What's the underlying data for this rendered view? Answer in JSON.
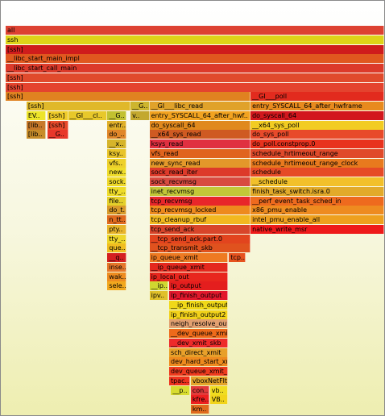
{
  "chart_data": {
    "type": "flame",
    "frames": [
      {
        "label": "all",
        "depth": 0,
        "start": 0,
        "width": 1000,
        "color": "#dd4231"
      },
      {
        "label": "ssh",
        "depth": 1,
        "start": 0,
        "width": 1000,
        "color": "#ded418"
      },
      {
        "label": "[ssh]",
        "depth": 2,
        "start": 0,
        "width": 1000,
        "color": "#cf1c1c"
      },
      {
        "label": "__libc_start_main_impl",
        "depth": 3,
        "start": 0,
        "width": 1000,
        "color": "#e0581f"
      },
      {
        "label": "__libc_start_call_main",
        "depth": 4,
        "start": 0,
        "width": 1000,
        "color": "#dc3a2a"
      },
      {
        "label": "[ssh]",
        "depth": 5,
        "start": 0,
        "width": 1000,
        "color": "#e04a2c"
      },
      {
        "label": "[ssh]",
        "depth": 6,
        "start": 0,
        "width": 1000,
        "color": "#e4432e"
      },
      {
        "label": "[ssh]",
        "depth": 7,
        "start": 0,
        "width": 647,
        "color": "#e08220"
      },
      {
        "label": "__GI___poll",
        "depth": 7,
        "start": 647,
        "width": 353,
        "color": "#e22b1e"
      },
      {
        "label": "[ssh]",
        "depth": 8,
        "start": 55,
        "width": 275,
        "color": "#e0b82a"
      },
      {
        "label": "__G..",
        "depth": 8,
        "start": 330,
        "width": 50,
        "color": "#cdb52e"
      },
      {
        "label": "__GI___libc_read",
        "depth": 8,
        "start": 380,
        "width": 267,
        "color": "#e0a22a"
      },
      {
        "label": "entry_SYSCALL_64_after_hwframe",
        "depth": 8,
        "start": 647,
        "width": 353,
        "color": "#e88a1e"
      },
      {
        "label": "EV..",
        "depth": 9,
        "start": 55,
        "width": 52,
        "color": "#ede42a"
      },
      {
        "label": "[ssh]",
        "depth": 9,
        "start": 110,
        "width": 55,
        "color": "#f0cc2a"
      },
      {
        "label": "__GI___cl..",
        "depth": 9,
        "start": 165,
        "width": 104,
        "color": "#e8c82a"
      },
      {
        "label": "__G..",
        "depth": 9,
        "start": 269,
        "width": 50,
        "color": "#c2c130"
      },
      {
        "label": "v..",
        "depth": 9,
        "start": 330,
        "width": 50,
        "color": "#c3a82e"
      },
      {
        "label": "entry_SYSCALL_64_after_hwf..",
        "depth": 9,
        "start": 380,
        "width": 267,
        "color": "#f2a320"
      },
      {
        "label": "do_syscall_64",
        "depth": 9,
        "start": 647,
        "width": 353,
        "color": "#d2171d"
      },
      {
        "label": "[lib..",
        "depth": 10,
        "start": 55,
        "width": 52,
        "color": "#c8792a"
      },
      {
        "label": "[ssh]",
        "depth": 10,
        "start": 110,
        "width": 55,
        "color": "#e84a2a"
      },
      {
        "label": "entr..",
        "depth": 10,
        "start": 269,
        "width": 50,
        "color": "#e0b02a"
      },
      {
        "label": "do_syscall_64",
        "depth": 10,
        "start": 380,
        "width": 267,
        "color": "#e0891e"
      },
      {
        "label": "__x64_sys_poll",
        "depth": 10,
        "start": 647,
        "width": 353,
        "color": "#f2cc22"
      },
      {
        "label": "[lib..",
        "depth": 11,
        "start": 55,
        "width": 52,
        "color": "#c88d2a"
      },
      {
        "label": "__G..",
        "depth": 11,
        "start": 110,
        "width": 55,
        "color": "#e8372a"
      },
      {
        "label": "do_..",
        "depth": 11,
        "start": 269,
        "width": 50,
        "color": "#e0862a"
      },
      {
        "label": "__x64_sys_read",
        "depth": 11,
        "start": 380,
        "width": 267,
        "color": "#cf5a22"
      },
      {
        "label": "do_sys_poll",
        "depth": 11,
        "start": 647,
        "width": 353,
        "color": "#e84a2a"
      },
      {
        "label": "__x..",
        "depth": 12,
        "start": 269,
        "width": 50,
        "color": "#d6b42a"
      },
      {
        "label": "ksys_read",
        "depth": 12,
        "start": 380,
        "width": 267,
        "color": "#e03040"
      },
      {
        "label": "do_poll.constprop.0",
        "depth": 12,
        "start": 647,
        "width": 353,
        "color": "#e8321e"
      },
      {
        "label": "ksy..",
        "depth": 13,
        "start": 269,
        "width": 50,
        "color": "#e8c42a"
      },
      {
        "label": "vfs_read",
        "depth": 13,
        "start": 380,
        "width": 267,
        "color": "#e0641e"
      },
      {
        "label": "schedule_hrtimeout_range",
        "depth": 13,
        "start": 647,
        "width": 353,
        "color": "#e04a2a"
      },
      {
        "label": "vfs..",
        "depth": 14,
        "start": 269,
        "width": 50,
        "color": "#eed12a"
      },
      {
        "label": "new_sync_read",
        "depth": 14,
        "start": 380,
        "width": 267,
        "color": "#e3982a"
      },
      {
        "label": "schedule_hrtimeout_range_clock",
        "depth": 14,
        "start": 647,
        "width": 353,
        "color": "#e87a1e"
      },
      {
        "label": "new..",
        "depth": 15,
        "start": 269,
        "width": 50,
        "color": "#eedc2a"
      },
      {
        "label": "sock_read_iter",
        "depth": 15,
        "start": 380,
        "width": 267,
        "color": "#dd3a2a"
      },
      {
        "label": "schedule",
        "depth": 15,
        "start": 647,
        "width": 353,
        "color": "#e64a26"
      },
      {
        "label": "sock..",
        "depth": 16,
        "start": 269,
        "width": 50,
        "color": "#eed82a"
      },
      {
        "label": "sock_recvmsg",
        "depth": 16,
        "start": 380,
        "width": 267,
        "color": "#d84a40"
      },
      {
        "label": "__schedule",
        "depth": 16,
        "start": 647,
        "width": 353,
        "color": "#f2c02a"
      },
      {
        "label": "tty_..",
        "depth": 17,
        "start": 269,
        "width": 50,
        "color": "#eedc2a"
      },
      {
        "label": "inet_recvmsg",
        "depth": 17,
        "start": 380,
        "width": 267,
        "color": "#c2c838"
      },
      {
        "label": "finish_task_switch.isra.0",
        "depth": 17,
        "start": 647,
        "width": 353,
        "color": "#e2aa2a"
      },
      {
        "label": "file..",
        "depth": 18,
        "start": 269,
        "width": 50,
        "color": "#e4d02a"
      },
      {
        "label": "tcp_recvmsg",
        "depth": 18,
        "start": 380,
        "width": 267,
        "color": "#e8262a"
      },
      {
        "label": "__perf_event_task_sched_in",
        "depth": 18,
        "start": 647,
        "width": 353,
        "color": "#ee6a1e"
      },
      {
        "label": "do_t..",
        "depth": 19,
        "start": 269,
        "width": 50,
        "color": "#d89a2a"
      },
      {
        "label": "tcp_recvmsg_locked",
        "depth": 19,
        "start": 380,
        "width": 267,
        "color": "#ee8a1e"
      },
      {
        "label": "x86_pmu_enable",
        "depth": 19,
        "start": 647,
        "width": 353,
        "color": "#ee8b20"
      },
      {
        "label": "n_tt..",
        "depth": 20,
        "start": 269,
        "width": 50,
        "color": "#e06a1e"
      },
      {
        "label": "tcp_cleanup_rbuf",
        "depth": 20,
        "start": 380,
        "width": 267,
        "color": "#f2b820"
      },
      {
        "label": "intel_pmu_enable_all",
        "depth": 20,
        "start": 647,
        "width": 353,
        "color": "#eea01e"
      },
      {
        "label": "pty..",
        "depth": 21,
        "start": 269,
        "width": 50,
        "color": "#e8b42a"
      },
      {
        "label": "tcp_send_ack",
        "depth": 21,
        "start": 380,
        "width": 267,
        "color": "#d8452a"
      },
      {
        "label": "native_write_msr",
        "depth": 21,
        "start": 647,
        "width": 353,
        "color": "#ee1a1a"
      },
      {
        "label": "tty_..",
        "depth": 22,
        "start": 269,
        "width": 50,
        "color": "#eed62a"
      },
      {
        "label": "__tcp_send_ack.part.0",
        "depth": 22,
        "start": 380,
        "width": 267,
        "color": "#e2441e"
      },
      {
        "label": "que..",
        "depth": 23,
        "start": 269,
        "width": 50,
        "color": "#f0be20"
      },
      {
        "label": "__tcp_transmit_skb",
        "depth": 23,
        "start": 380,
        "width": 267,
        "color": "#e0521e"
      },
      {
        "label": "__q..",
        "depth": 24,
        "start": 269,
        "width": 50,
        "color": "#d42020"
      },
      {
        "label": "ip_queue_xmit",
        "depth": 24,
        "start": 380,
        "width": 207,
        "color": "#ee7a22"
      },
      {
        "label": "tcp..",
        "depth": 24,
        "start": 590,
        "width": 45,
        "color": "#e6521e"
      },
      {
        "label": "inse..",
        "depth": 25,
        "start": 269,
        "width": 50,
        "color": "#e6762a"
      },
      {
        "label": "__ip_queue_xmit",
        "depth": 25,
        "start": 380,
        "width": 207,
        "color": "#e4281e"
      },
      {
        "label": "wak..",
        "depth": 26,
        "start": 269,
        "width": 50,
        "color": "#ee8c20"
      },
      {
        "label": "ip_local_out",
        "depth": 26,
        "start": 380,
        "width": 207,
        "color": "#e8261e"
      },
      {
        "label": "sele..",
        "depth": 27,
        "start": 269,
        "width": 50,
        "color": "#f2a81e"
      },
      {
        "label": "__ip..",
        "depth": 27,
        "start": 380,
        "width": 50,
        "color": "#d0d830"
      },
      {
        "label": "ip_output",
        "depth": 27,
        "start": 432,
        "width": 155,
        "color": "#e41e1e"
      },
      {
        "label": "ipv..",
        "depth": 28,
        "start": 380,
        "width": 50,
        "color": "#e0c02a"
      },
      {
        "label": "ip_finish_output",
        "depth": 28,
        "start": 432,
        "width": 155,
        "color": "#e2182c"
      },
      {
        "label": "__ip_finish_output",
        "depth": 29,
        "start": 432,
        "width": 155,
        "color": "#f0d818"
      },
      {
        "label": "ip_finish_output2",
        "depth": 30,
        "start": 432,
        "width": 155,
        "color": "#f2d21a"
      },
      {
        "label": "neigh_resolve_out..",
        "depth": 31,
        "start": 432,
        "width": 155,
        "color": "#e2a070"
      },
      {
        "label": "__dev_queue_xmit",
        "depth": 32,
        "start": 432,
        "width": 155,
        "color": "#ee6a1a"
      },
      {
        "label": "__dev_xmit_skb",
        "depth": 33,
        "start": 432,
        "width": 155,
        "color": "#ee2a2a"
      },
      {
        "label": "sch_direct_xmit",
        "depth": 34,
        "start": 432,
        "width": 155,
        "color": "#e8a02a"
      },
      {
        "label": "dev_hard_start_xmit",
        "depth": 35,
        "start": 432,
        "width": 155,
        "color": "#ee8a1e"
      },
      {
        "label": "dev_queue_xmit_nit",
        "depth": 36,
        "start": 432,
        "width": 155,
        "color": "#ee3a1e"
      },
      {
        "label": "tpac..",
        "depth": 37,
        "start": 432,
        "width": 55,
        "color": "#ee321e"
      },
      {
        "label": "vboxNetFlt..",
        "depth": 37,
        "start": 489,
        "width": 98,
        "color": "#e4a42a"
      },
      {
        "label": "__p..",
        "depth": 38,
        "start": 437,
        "width": 50,
        "color": "#d8dc30"
      },
      {
        "label": "con..",
        "depth": 38,
        "start": 489,
        "width": 49,
        "color": "#e23a3a"
      },
      {
        "label": "vb..",
        "depth": 38,
        "start": 540,
        "width": 47,
        "color": "#f0dc20"
      },
      {
        "label": "kfre..",
        "depth": 39,
        "start": 489,
        "width": 49,
        "color": "#ee2020"
      },
      {
        "label": "VB..",
        "depth": 39,
        "start": 540,
        "width": 47,
        "color": "#f2d41a"
      },
      {
        "label": "km..",
        "depth": 40,
        "start": 489,
        "width": 49,
        "color": "#e06a1e"
      }
    ]
  }
}
